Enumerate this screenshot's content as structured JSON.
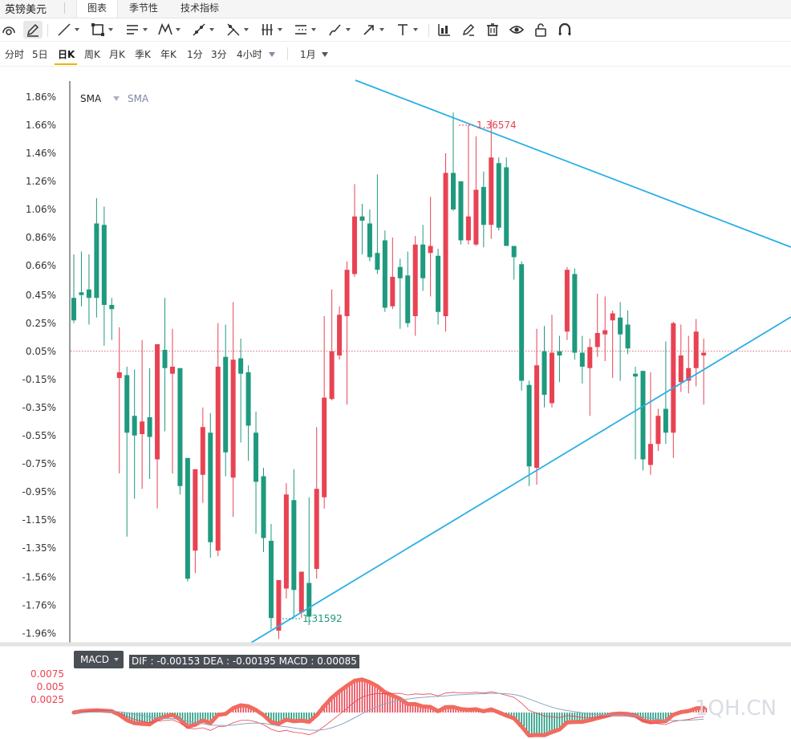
{
  "app": {
    "title": "英镑美元",
    "tabs": [
      {
        "label": "图表",
        "active": true
      },
      {
        "label": "季节性",
        "active": false
      },
      {
        "label": "技术指标",
        "active": false
      }
    ]
  },
  "toolbar": {
    "tools": [
      "reset-view-icon",
      "pen-icon",
      "line-icon",
      "rectangle-icon",
      "parallel-lines-icon",
      "pattern-icon",
      "fibonacci-icon",
      "gann-icon",
      "bars-icon",
      "range-icon",
      "brush-icon",
      "arrow-icon",
      "text-icon",
      "indicator-icon",
      "edit-icon",
      "delete-icon",
      "eye-icon",
      "lock-icon",
      "magnet-icon"
    ]
  },
  "periods": {
    "items": [
      "分时",
      "5日",
      "日K",
      "周K",
      "月K",
      "季K",
      "年K",
      "1分",
      "3分",
      "4小时"
    ],
    "active": "日K",
    "range": "1月"
  },
  "colors": {
    "up": "#e84353",
    "down": "#1e9a7e",
    "trendline": "#2aaee6",
    "macd_thick": "#f16b5f",
    "dea": "#8ea5c0"
  },
  "chart_data": {
    "type": "candlestick",
    "indicator_labels": [
      "SMA",
      "SMA"
    ],
    "y_ticks": [
      "1.86%",
      "1.66%",
      "1.46%",
      "1.26%",
      "1.06%",
      "0.86%",
      "0.66%",
      "0.45%",
      "0.25%",
      "0.05%",
      "-0.15%",
      "-0.35%",
      "-0.55%",
      "-0.75%",
      "-0.95%",
      "-1.15%",
      "-1.35%",
      "-1.56%",
      "-1.76%",
      "-1.96%"
    ],
    "ylim": [
      -2.02,
      1.98
    ],
    "reference_line": 0.05,
    "max_label": "1.36574",
    "min_label": "1.31592",
    "candles": [
      [
        0.43,
        0.27,
        0.74,
        0.25
      ],
      [
        0.47,
        0.45,
        0.76,
        0.37
      ],
      [
        0.49,
        0.43,
        0.74,
        0.24
      ],
      [
        0.96,
        0.43,
        1.14,
        0.29
      ],
      [
        0.95,
        0.38,
        1.08,
        0.09
      ],
      [
        0.38,
        0.35,
        0.43,
        0.13
      ],
      [
        -0.14,
        -0.1,
        0.22,
        -0.82
      ],
      [
        -0.12,
        -0.53,
        -0.06,
        -1.27
      ],
      [
        -0.41,
        -0.55,
        -0.08,
        -1.0
      ],
      [
        -0.54,
        -0.45,
        0.13,
        -0.93
      ],
      [
        -0.42,
        -0.56,
        -0.07,
        -0.86
      ],
      [
        -0.72,
        0.1,
        0.1,
        -1.07
      ],
      [
        0.06,
        -0.07,
        0.43,
        -0.52
      ],
      [
        -0.11,
        -0.06,
        0.21,
        -0.82
      ],
      [
        -0.07,
        -0.91,
        -0.14,
        -0.97
      ],
      [
        -0.71,
        -1.57,
        -0.74,
        -1.59
      ],
      [
        -1.37,
        -0.79,
        -0.79,
        -1.53
      ],
      [
        -0.83,
        -0.49,
        -0.35,
        -1.03
      ],
      [
        -0.53,
        -1.31,
        -0.39,
        -1.42
      ],
      [
        -1.37,
        -0.06,
        0.25,
        -1.41
      ],
      [
        0.01,
        -0.67,
        0.24,
        -0.84
      ],
      [
        -0.85,
        -0.01,
        0.4,
        -1.13
      ],
      [
        0.0,
        -0.11,
        0.14,
        -0.6
      ],
      [
        -0.1,
        -0.48,
        -0.05,
        -0.73
      ],
      [
        -0.53,
        -0.88,
        -0.38,
        -1.25
      ],
      [
        -0.84,
        -1.28,
        -0.78,
        -1.38
      ],
      [
        -1.3,
        -1.85,
        -1.18,
        -1.93
      ],
      [
        -1.94,
        -1.58,
        -1.58,
        -2.0
      ],
      [
        -1.64,
        -0.97,
        -0.89,
        -1.71
      ],
      [
        -1.01,
        -1.65,
        -0.79,
        -1.85
      ],
      [
        -1.81,
        -1.52,
        -1.52,
        -1.85
      ],
      [
        -1.6,
        -1.84,
        -0.99,
        -1.9
      ],
      [
        -1.5,
        -0.93,
        -0.49,
        -1.57
      ],
      [
        -0.99,
        -0.28,
        0.3,
        -1.07
      ],
      [
        -0.29,
        0.05,
        0.49,
        -0.3
      ],
      [
        0.02,
        0.31,
        0.37,
        -0.01
      ],
      [
        0.3,
        0.63,
        0.69,
        -0.33
      ],
      [
        0.6,
        1.01,
        1.24,
        0.58
      ],
      [
        1.01,
        0.98,
        1.1,
        0.74
      ],
      [
        0.96,
        0.72,
        1.06,
        0.69
      ],
      [
        0.75,
        0.63,
        1.31,
        0.6
      ],
      [
        0.84,
        0.36,
        0.91,
        0.33
      ],
      [
        0.37,
        0.58,
        0.86,
        0.35
      ],
      [
        0.65,
        0.57,
        0.71,
        0.21
      ],
      [
        0.59,
        0.25,
        0.76,
        0.22
      ],
      [
        0.3,
        0.81,
        0.87,
        0.16
      ],
      [
        0.81,
        0.57,
        0.95,
        0.48
      ],
      [
        0.75,
        0.8,
        1.15,
        0.44
      ],
      [
        0.73,
        0.33,
        0.78,
        0.24
      ],
      [
        0.3,
        1.32,
        1.46,
        0.19
      ],
      [
        1.32,
        1.06,
        1.75,
        1.05
      ],
      [
        1.26,
        0.84,
        1.26,
        0.81
      ],
      [
        0.84,
        1.01,
        1.66,
        0.81
      ],
      [
        0.81,
        1.2,
        1.58,
        0.8
      ],
      [
        1.22,
        0.95,
        1.33,
        0.79
      ],
      [
        0.95,
        1.43,
        1.7,
        0.85
      ],
      [
        1.39,
        0.93,
        1.43,
        0.91
      ],
      [
        1.36,
        0.8,
        1.43,
        0.8
      ],
      [
        0.8,
        0.72,
        0.8,
        0.56
      ],
      [
        0.67,
        -0.16,
        0.69,
        -0.23
      ],
      [
        -0.19,
        -0.77,
        -0.16,
        -0.91
      ],
      [
        -0.78,
        -0.05,
        0.21,
        -0.9
      ],
      [
        0.05,
        -0.26,
        0.23,
        -0.35
      ],
      [
        -0.32,
        0.04,
        0.31,
        -0.35
      ],
      [
        0.05,
        0.02,
        0.16,
        -0.17
      ],
      [
        0.19,
        0.63,
        0.65,
        0.13
      ],
      [
        0.6,
        0.04,
        0.64,
        -0.01
      ],
      [
        0.04,
        -0.06,
        0.16,
        -0.18
      ],
      [
        -0.07,
        0.08,
        0.14,
        -0.41
      ],
      [
        0.08,
        0.18,
        0.46,
        0.01
      ],
      [
        0.17,
        0.2,
        0.44,
        -0.02
      ],
      [
        0.27,
        0.32,
        0.34,
        -0.14
      ],
      [
        0.29,
        0.17,
        0.4,
        -0.16
      ],
      [
        0.24,
        0.07,
        0.34,
        0.03
      ],
      [
        -0.11,
        -0.13,
        -0.06,
        -0.72
      ],
      [
        -0.09,
        -0.72,
        -0.09,
        -0.8
      ],
      [
        -0.76,
        -0.61,
        -0.1,
        -0.83
      ],
      [
        -0.61,
        -0.41,
        -0.36,
        -0.66
      ],
      [
        -0.36,
        -0.53,
        0.12,
        -0.61
      ],
      [
        -0.53,
        0.25,
        0.26,
        -0.71
      ],
      [
        -0.17,
        0.02,
        0.24,
        -0.24
      ],
      [
        -0.16,
        -0.07,
        0.16,
        -0.25
      ],
      [
        -0.07,
        0.19,
        0.28,
        -0.2
      ],
      [
        0.02,
        0.04,
        0.14,
        -0.33
      ]
    ],
    "macd": {
      "label": "MACD",
      "info": "DIF : -0.00153   DEA : -0.00195   MACD : 0.00085",
      "y_ticks": [
        "0.0075",
        "0.005",
        "0.0025"
      ]
    }
  },
  "watermark": "1QH.CN"
}
